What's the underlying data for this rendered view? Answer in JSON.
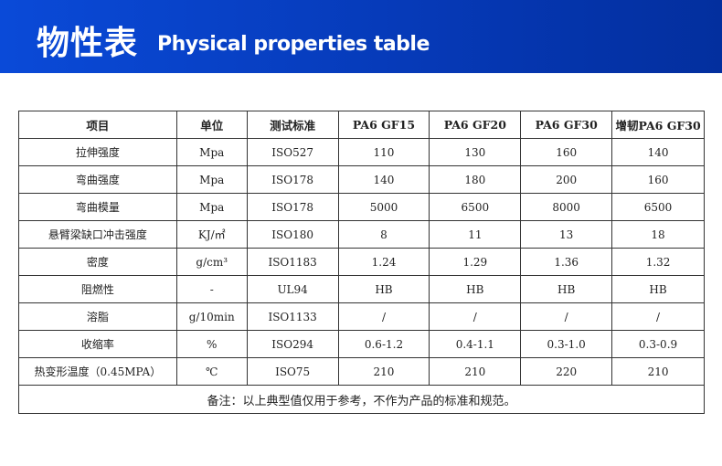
{
  "header": {
    "title_cn": "物性表",
    "title_en": "Physical properties table",
    "colors": {
      "banner": "#0a4ad8"
    }
  },
  "table": {
    "columns": [
      "项目",
      "单位",
      "测试标准",
      "PA6 GF15",
      "PA6 GF20",
      "PA6 GF30",
      "增韧PA6 GF30"
    ],
    "rows": [
      [
        "拉伸强度",
        "Mpa",
        "ISO527",
        "110",
        "130",
        "160",
        "140"
      ],
      [
        "弯曲强度",
        "Mpa",
        "ISO178",
        "140",
        "180",
        "200",
        "160"
      ],
      [
        "弯曲模量",
        "Mpa",
        "ISO178",
        "5000",
        "6500",
        "8000",
        "6500"
      ],
      [
        "悬臂梁缺口冲击强度",
        "KJ/㎡",
        "ISO180",
        "8",
        "11",
        "13",
        "18"
      ],
      [
        "密度",
        "g/cm³",
        "ISO1183",
        "1.24",
        "1.29",
        "1.36",
        "1.32"
      ],
      [
        "阻燃性",
        "-",
        "UL94",
        "HB",
        "HB",
        "HB",
        "HB"
      ],
      [
        "溶脂",
        "g/10min",
        "ISO1133",
        "/",
        "/",
        "/",
        "/"
      ],
      [
        "收缩率",
        "%",
        "ISO294",
        "0.6-1.2",
        "0.4-1.1",
        "0.3-1.0",
        "0.3-0.9"
      ],
      [
        "热变形温度（0.45MPA）",
        "℃",
        "ISO75",
        "210",
        "210",
        "220",
        "210"
      ]
    ],
    "note": "备注：以上典型值仅用于参考，不作为产品的标准和规范。"
  }
}
